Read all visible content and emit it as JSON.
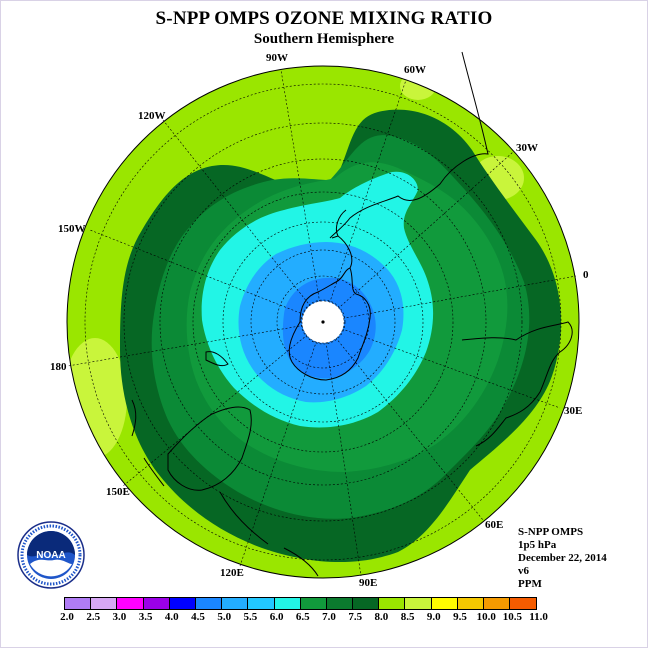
{
  "title": "S-NPP OMPS OZONE MIXING RATIO",
  "subtitle": "Southern Hemisphere",
  "longitude_labels": [
    "90W",
    "60W",
    "30W",
    "0",
    "30E",
    "60E",
    "90E",
    "120E",
    "150E",
    "180",
    "150W",
    "120W"
  ],
  "info": {
    "instrument": "S-NPP OMPS",
    "level": "1p5 hPa",
    "date": "December 22, 2014",
    "version": "v6",
    "units": "PPM"
  },
  "logo": {
    "text": "NOAA",
    "icon": "noaa-logo"
  },
  "colorbar": {
    "ticks": [
      "2.0",
      "2.5",
      "3.0",
      "3.5",
      "4.0",
      "4.5",
      "5.0",
      "5.5",
      "6.0",
      "6.5",
      "7.0",
      "7.5",
      "8.0",
      "8.5",
      "9.0",
      "9.5",
      "10.0",
      "10.5",
      "11.0"
    ],
    "colors": [
      "#b07cf5",
      "#d7a7f5",
      "#ff00ff",
      "#9b00e8",
      "#0000ff",
      "#1a86ff",
      "#23adff",
      "#22c8ff",
      "#22f5e6",
      "#119a3c",
      "#0b7a2e",
      "#066724",
      "#9ae600",
      "#c9f53b",
      "#fffc00",
      "#f5c800",
      "#f59a00",
      "#f55c00",
      "#f00000",
      "#6e3f2a"
    ]
  },
  "colors": {
    "band_7_0_7_5": "#9ae600",
    "band_7_5_8_0": "#c9f53b",
    "band_6_5_7_0": "#066724",
    "band_6_0_6_5": "#0b8a36",
    "band_5_5_6_0": "#119a3c",
    "band_5_0_5_5": "#22f5e6",
    "band_4_5_5_0": "#23adff",
    "band_4_0_4_5": "#1a86ff",
    "no_data": "#ffffff"
  }
}
